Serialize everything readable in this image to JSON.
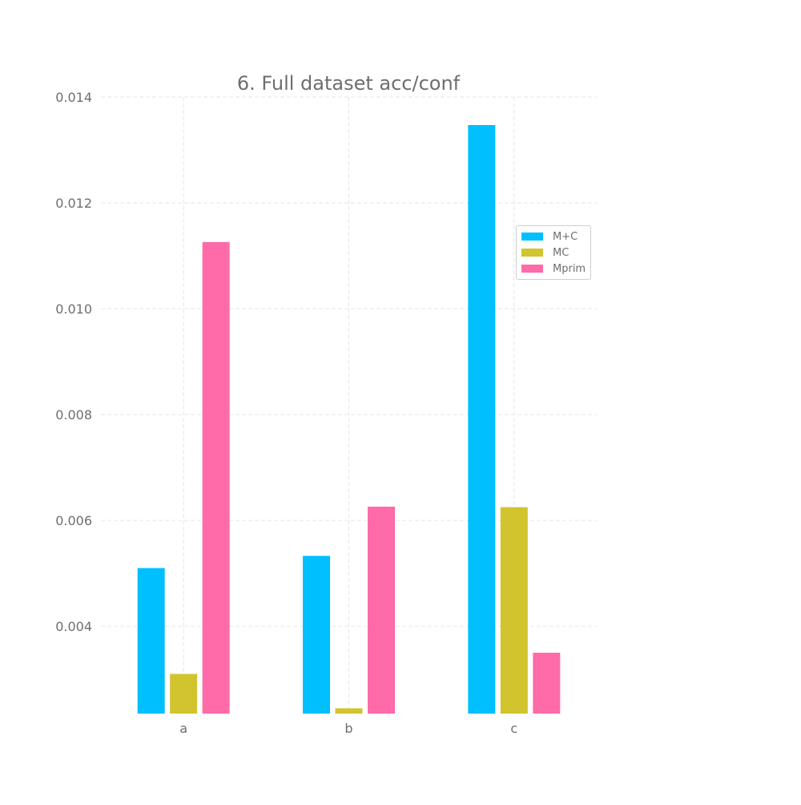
{
  "chart_data": {
    "type": "bar",
    "title": "6. Full dataset acc/conf",
    "xlabel": "",
    "ylabel": "",
    "categories": [
      "a",
      "b",
      "c"
    ],
    "ylim": [
      0.00235,
      0.014
    ],
    "yticks": [
      0.004,
      0.006,
      0.008,
      0.01,
      0.012,
      0.014
    ],
    "ytick_labels": [
      "0.004",
      "0.006",
      "0.008",
      "0.010",
      "0.012",
      "0.014"
    ],
    "grid": true,
    "legend_position": "right",
    "series": [
      {
        "name": "M+C",
        "color": "#00bfff",
        "values": [
          0.0051,
          0.00533,
          0.01347
        ]
      },
      {
        "name": "MC",
        "color": "#d1c42f",
        "values": [
          0.0031,
          0.00245,
          0.00625
        ]
      },
      {
        "name": "Mprim",
        "color": "#ff6aa8",
        "values": [
          0.01126,
          0.00626,
          0.0035
        ]
      }
    ]
  }
}
